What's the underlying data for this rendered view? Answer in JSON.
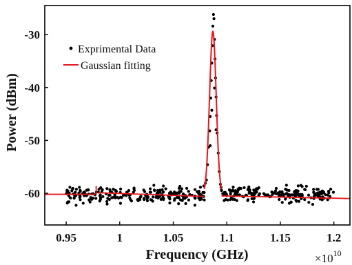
{
  "chart_data": {
    "type": "scatter",
    "xlabel": "Frequency (GHz)",
    "ylabel": "Power (dBm)",
    "x_multiplier_base": "×10",
    "x_multiplier_exponent": "10",
    "xlim": [
      0.93,
      1.215
    ],
    "ylim": [
      -66,
      -24.5
    ],
    "x_ticks": [
      0.95,
      1,
      1.05,
      1.1,
      1.15,
      1.2
    ],
    "x_tick_labels": [
      "0.95",
      "1",
      "1.05",
      "1.1",
      "1.15",
      "1.2"
    ],
    "y_ticks": [
      -60,
      -50,
      -40,
      -30
    ],
    "y_tick_labels": [
      "-60",
      "-50",
      "-40",
      "-30"
    ],
    "grid": false,
    "legend_position": "top-left",
    "colors": {
      "data": "#000000",
      "fit": "#e8141b"
    },
    "series": [
      {
        "name": "Exprimental Data",
        "kind": "scatter",
        "generated": true,
        "noise_seed": 7,
        "x_range": [
          0.95,
          1.2
        ],
        "points": 460,
        "baseline": -60.3,
        "noise_amplitude": 3,
        "peak_center": 1.087,
        "peak_height": 32.8,
        "peak_sigma": 0.0032,
        "peak_points": [
          [
            1.08,
            -58.1
          ],
          [
            1.082,
            -54.6
          ],
          [
            1.083,
            -51.3
          ],
          [
            1.084,
            -48.2
          ],
          [
            1.0845,
            -45.5
          ],
          [
            1.085,
            -42.0
          ],
          [
            1.0855,
            -38.7
          ],
          [
            1.086,
            -35.4
          ],
          [
            1.0865,
            -32.1
          ],
          [
            1.087,
            -28.4
          ],
          [
            1.0875,
            -26.2
          ],
          [
            1.088,
            -27.0
          ],
          [
            1.0885,
            -30.9
          ],
          [
            1.089,
            -34.6
          ],
          [
            1.0895,
            -38.2
          ],
          [
            1.09,
            -41.8
          ],
          [
            1.0905,
            -45.3
          ],
          [
            1.091,
            -48.6
          ],
          [
            1.092,
            -52.4
          ],
          [
            1.093,
            -55.9
          ],
          [
            1.094,
            -58.3
          ],
          [
            1.0845,
            -51.0
          ],
          [
            1.09,
            -48.0
          ],
          [
            1.086,
            -44.3
          ],
          [
            1.0885,
            -40.1
          ],
          [
            1.081,
            -57.5
          ],
          [
            1.095,
            -59.4
          ]
        ]
      },
      {
        "name": "Gaussian fitting",
        "kind": "line",
        "baseline_segments": [
          {
            "x": [
              0.93,
              0.977
            ],
            "y_start": -60.2,
            "y_end": -60.2
          },
          {
            "x": [
              0.98,
              1.079
            ],
            "y_start": -59.9,
            "y_end": -60.6
          },
          {
            "x": [
              1.095,
              1.215
            ],
            "y_start": -60.5,
            "y_end": -61.0
          }
        ],
        "step_marker": {
          "x": 0.978,
          "y_bottom": -60.3,
          "y_top": -58.6
        },
        "peak": {
          "center": 1.087,
          "peak_value": -29.4,
          "sigma": 0.0031,
          "base": -60.3,
          "x_range": [
            1.079,
            1.095
          ]
        }
      }
    ]
  }
}
